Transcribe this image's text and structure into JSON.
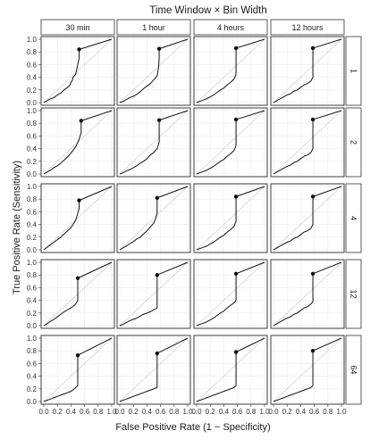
{
  "chart_data": {
    "type": "line",
    "title": "Time Window × Bin Width",
    "xlabel": "False Positive Rate (1 − Specificity)",
    "ylabel": "True Positive Rate (Sensitivity)",
    "xlim": [
      0,
      1
    ],
    "ylim": [
      0,
      1
    ],
    "xticks": [
      "0.0",
      "0.2",
      "0.4",
      "0.6",
      "0.8",
      "1.0"
    ],
    "yticks": [
      "0.0",
      "0.2",
      "0.4",
      "0.6",
      "0.8",
      "1.0"
    ],
    "grid": true,
    "reference_line": "diagonal",
    "column_facets": [
      "30 min",
      "1 hour",
      "4 hours",
      "12 hours"
    ],
    "row_facets": [
      "1",
      "2",
      "4",
      "12",
      "64"
    ],
    "colors": {
      "curve": "#111111",
      "diagonal": "#cccccc",
      "grid": "#ebebeb",
      "strip_bg": "#ffffff",
      "border": "#333333"
    },
    "panels": [
      {
        "col": "30 min",
        "row": "1",
        "point": [
          0.52,
          0.84
        ],
        "x": [
          0,
          0.05,
          0.1,
          0.15,
          0.2,
          0.25,
          0.3,
          0.35,
          0.38,
          0.4,
          0.42,
          0.43,
          0.45,
          0.47,
          0.48,
          0.49,
          0.5,
          0.51,
          0.52,
          0.52,
          0.52,
          0.52,
          1.0
        ],
        "y": [
          0,
          0.03,
          0.06,
          0.08,
          0.12,
          0.15,
          0.2,
          0.24,
          0.27,
          0.32,
          0.35,
          0.4,
          0.42,
          0.45,
          0.5,
          0.55,
          0.6,
          0.65,
          0.7,
          0.75,
          0.8,
          0.84,
          1.0
        ]
      },
      {
        "col": "1 hour",
        "row": "1",
        "point": [
          0.58,
          0.85
        ],
        "x": [
          0,
          0.05,
          0.1,
          0.15,
          0.2,
          0.25,
          0.3,
          0.35,
          0.4,
          0.45,
          0.5,
          0.55,
          0.57,
          0.58,
          0.58,
          1.0
        ],
        "y": [
          0,
          0.02,
          0.05,
          0.08,
          0.1,
          0.13,
          0.17,
          0.22,
          0.26,
          0.3,
          0.36,
          0.42,
          0.55,
          0.7,
          0.85,
          1.0
        ]
      },
      {
        "col": "4 hours",
        "row": "1",
        "point": [
          0.58,
          0.86
        ],
        "x": [
          0,
          0.05,
          0.1,
          0.15,
          0.2,
          0.25,
          0.3,
          0.35,
          0.4,
          0.45,
          0.5,
          0.55,
          0.58,
          0.58,
          0.58,
          1.0
        ],
        "y": [
          0,
          0.02,
          0.04,
          0.06,
          0.09,
          0.12,
          0.16,
          0.2,
          0.23,
          0.28,
          0.32,
          0.37,
          0.45,
          0.7,
          0.86,
          1.0
        ]
      },
      {
        "col": "12 hours",
        "row": "1",
        "point": [
          0.58,
          0.86
        ],
        "x": [
          0,
          0.05,
          0.1,
          0.15,
          0.2,
          0.25,
          0.3,
          0.35,
          0.4,
          0.45,
          0.5,
          0.55,
          0.58,
          0.58,
          0.58,
          1.0
        ],
        "y": [
          0,
          0.03,
          0.06,
          0.09,
          0.12,
          0.14,
          0.18,
          0.2,
          0.24,
          0.28,
          0.3,
          0.34,
          0.4,
          0.65,
          0.86,
          1.0
        ]
      },
      {
        "col": "30 min",
        "row": "2",
        "point": [
          0.55,
          0.84
        ],
        "x": [
          0,
          0.05,
          0.1,
          0.15,
          0.2,
          0.25,
          0.3,
          0.35,
          0.4,
          0.45,
          0.48,
          0.5,
          0.52,
          0.55,
          0.55,
          1.0
        ],
        "y": [
          0,
          0.03,
          0.06,
          0.1,
          0.13,
          0.17,
          0.22,
          0.27,
          0.33,
          0.4,
          0.45,
          0.5,
          0.55,
          0.65,
          0.84,
          1.0
        ]
      },
      {
        "col": "1 hour",
        "row": "2",
        "point": [
          0.58,
          0.85
        ],
        "x": [
          0,
          0.05,
          0.1,
          0.15,
          0.2,
          0.25,
          0.3,
          0.35,
          0.4,
          0.45,
          0.5,
          0.55,
          0.58,
          0.58,
          0.58,
          1.0
        ],
        "y": [
          0,
          0.02,
          0.05,
          0.07,
          0.1,
          0.13,
          0.17,
          0.2,
          0.24,
          0.3,
          0.34,
          0.4,
          0.5,
          0.7,
          0.85,
          1.0
        ]
      },
      {
        "col": "4 hours",
        "row": "2",
        "point": [
          0.58,
          0.86
        ],
        "x": [
          0,
          0.05,
          0.1,
          0.15,
          0.2,
          0.25,
          0.3,
          0.35,
          0.4,
          0.45,
          0.5,
          0.55,
          0.58,
          0.58,
          0.58,
          1.0
        ],
        "y": [
          0,
          0.02,
          0.04,
          0.06,
          0.09,
          0.12,
          0.16,
          0.2,
          0.23,
          0.28,
          0.32,
          0.37,
          0.45,
          0.7,
          0.86,
          1.0
        ]
      },
      {
        "col": "12 hours",
        "row": "2",
        "point": [
          0.58,
          0.86
        ],
        "x": [
          0,
          0.05,
          0.1,
          0.15,
          0.2,
          0.25,
          0.3,
          0.35,
          0.4,
          0.45,
          0.5,
          0.55,
          0.58,
          0.58,
          0.58,
          1.0
        ],
        "y": [
          0,
          0.03,
          0.06,
          0.09,
          0.12,
          0.14,
          0.18,
          0.2,
          0.24,
          0.28,
          0.3,
          0.34,
          0.4,
          0.65,
          0.86,
          1.0
        ]
      },
      {
        "col": "30 min",
        "row": "4",
        "point": [
          0.52,
          0.78
        ],
        "x": [
          0,
          0.05,
          0.1,
          0.15,
          0.2,
          0.25,
          0.3,
          0.35,
          0.4,
          0.43,
          0.46,
          0.48,
          0.5,
          0.52,
          0.52,
          1.0
        ],
        "y": [
          0,
          0.04,
          0.08,
          0.12,
          0.16,
          0.2,
          0.25,
          0.3,
          0.35,
          0.4,
          0.45,
          0.5,
          0.58,
          0.65,
          0.78,
          1.0
        ]
      },
      {
        "col": "1 hour",
        "row": "4",
        "point": [
          0.55,
          0.82
        ],
        "x": [
          0,
          0.05,
          0.1,
          0.15,
          0.2,
          0.25,
          0.3,
          0.35,
          0.4,
          0.45,
          0.5,
          0.53,
          0.55,
          0.55,
          0.55,
          1.0
        ],
        "y": [
          0,
          0.03,
          0.06,
          0.1,
          0.13,
          0.17,
          0.2,
          0.25,
          0.3,
          0.36,
          0.42,
          0.5,
          0.58,
          0.7,
          0.82,
          1.0
        ]
      },
      {
        "col": "4 hours",
        "row": "4",
        "point": [
          0.58,
          0.84
        ],
        "x": [
          0,
          0.05,
          0.1,
          0.15,
          0.2,
          0.25,
          0.3,
          0.35,
          0.4,
          0.45,
          0.5,
          0.55,
          0.58,
          0.58,
          0.58,
          1.0
        ],
        "y": [
          0,
          0.02,
          0.04,
          0.06,
          0.09,
          0.12,
          0.16,
          0.2,
          0.23,
          0.28,
          0.32,
          0.37,
          0.45,
          0.7,
          0.84,
          1.0
        ]
      },
      {
        "col": "12 hours",
        "row": "4",
        "point": [
          0.58,
          0.84
        ],
        "x": [
          0,
          0.05,
          0.1,
          0.15,
          0.2,
          0.25,
          0.3,
          0.35,
          0.4,
          0.45,
          0.5,
          0.55,
          0.58,
          0.58,
          0.58,
          1.0
        ],
        "y": [
          0,
          0.03,
          0.06,
          0.09,
          0.12,
          0.14,
          0.18,
          0.2,
          0.24,
          0.28,
          0.3,
          0.34,
          0.4,
          0.65,
          0.84,
          1.0
        ]
      },
      {
        "col": "30 min",
        "row": "12",
        "point": [
          0.5,
          0.75
        ],
        "x": [
          0,
          0.05,
          0.1,
          0.15,
          0.2,
          0.25,
          0.3,
          0.35,
          0.4,
          0.45,
          0.48,
          0.5,
          0.5,
          0.5,
          1.0
        ],
        "y": [
          0,
          0.03,
          0.07,
          0.1,
          0.14,
          0.18,
          0.22,
          0.25,
          0.28,
          0.32,
          0.36,
          0.4,
          0.6,
          0.75,
          1.0
        ]
      },
      {
        "col": "1 hour",
        "row": "12",
        "point": [
          0.55,
          0.8
        ],
        "x": [
          0,
          0.05,
          0.1,
          0.15,
          0.2,
          0.25,
          0.3,
          0.35,
          0.4,
          0.45,
          0.5,
          0.55,
          0.55,
          0.55,
          1.0
        ],
        "y": [
          0,
          0.02,
          0.05,
          0.08,
          0.1,
          0.12,
          0.15,
          0.18,
          0.2,
          0.22,
          0.25,
          0.28,
          0.55,
          0.8,
          1.0
        ]
      },
      {
        "col": "4 hours",
        "row": "12",
        "point": [
          0.58,
          0.82
        ],
        "x": [
          0,
          0.05,
          0.1,
          0.15,
          0.2,
          0.25,
          0.3,
          0.35,
          0.4,
          0.45,
          0.5,
          0.55,
          0.58,
          0.58,
          0.58,
          1.0
        ],
        "y": [
          0,
          0.02,
          0.04,
          0.06,
          0.09,
          0.12,
          0.16,
          0.2,
          0.23,
          0.28,
          0.32,
          0.36,
          0.4,
          0.65,
          0.82,
          1.0
        ]
      },
      {
        "col": "12 hours",
        "row": "12",
        "point": [
          0.58,
          0.82
        ],
        "x": [
          0,
          0.05,
          0.1,
          0.15,
          0.2,
          0.25,
          0.3,
          0.35,
          0.4,
          0.45,
          0.5,
          0.55,
          0.58,
          0.58,
          0.58,
          1.0
        ],
        "y": [
          0,
          0.03,
          0.06,
          0.09,
          0.12,
          0.14,
          0.18,
          0.2,
          0.24,
          0.28,
          0.3,
          0.34,
          0.38,
          0.6,
          0.82,
          1.0
        ]
      },
      {
        "col": "30 min",
        "row": "64",
        "point": [
          0.5,
          0.73
        ],
        "x": [
          0,
          0.05,
          0.1,
          0.15,
          0.2,
          0.25,
          0.3,
          0.35,
          0.4,
          0.45,
          0.5,
          0.5,
          0.5,
          1.0
        ],
        "y": [
          0,
          0.02,
          0.04,
          0.06,
          0.08,
          0.1,
          0.12,
          0.14,
          0.16,
          0.2,
          0.25,
          0.5,
          0.73,
          1.0
        ]
      },
      {
        "col": "1 hour",
        "row": "64",
        "point": [
          0.55,
          0.76
        ],
        "x": [
          0,
          0.05,
          0.1,
          0.15,
          0.2,
          0.25,
          0.3,
          0.35,
          0.4,
          0.45,
          0.5,
          0.55,
          0.55,
          0.55,
          1.0
        ],
        "y": [
          0,
          0.02,
          0.04,
          0.06,
          0.08,
          0.1,
          0.12,
          0.14,
          0.16,
          0.18,
          0.2,
          0.22,
          0.5,
          0.76,
          1.0
        ]
      },
      {
        "col": "4 hours",
        "row": "64",
        "point": [
          0.58,
          0.78
        ],
        "x": [
          0,
          0.05,
          0.1,
          0.15,
          0.2,
          0.25,
          0.3,
          0.35,
          0.4,
          0.45,
          0.5,
          0.55,
          0.58,
          0.58,
          0.58,
          1.0
        ],
        "y": [
          0,
          0.02,
          0.04,
          0.06,
          0.08,
          0.1,
          0.12,
          0.14,
          0.16,
          0.18,
          0.2,
          0.22,
          0.25,
          0.55,
          0.78,
          1.0
        ]
      },
      {
        "col": "12 hours",
        "row": "64",
        "point": [
          0.58,
          0.8
        ],
        "x": [
          0,
          0.05,
          0.1,
          0.15,
          0.2,
          0.25,
          0.3,
          0.35,
          0.4,
          0.45,
          0.5,
          0.55,
          0.58,
          0.58,
          0.58,
          1.0
        ],
        "y": [
          0,
          0.02,
          0.04,
          0.06,
          0.08,
          0.1,
          0.12,
          0.14,
          0.16,
          0.18,
          0.2,
          0.22,
          0.25,
          0.55,
          0.8,
          1.0
        ]
      }
    ]
  }
}
